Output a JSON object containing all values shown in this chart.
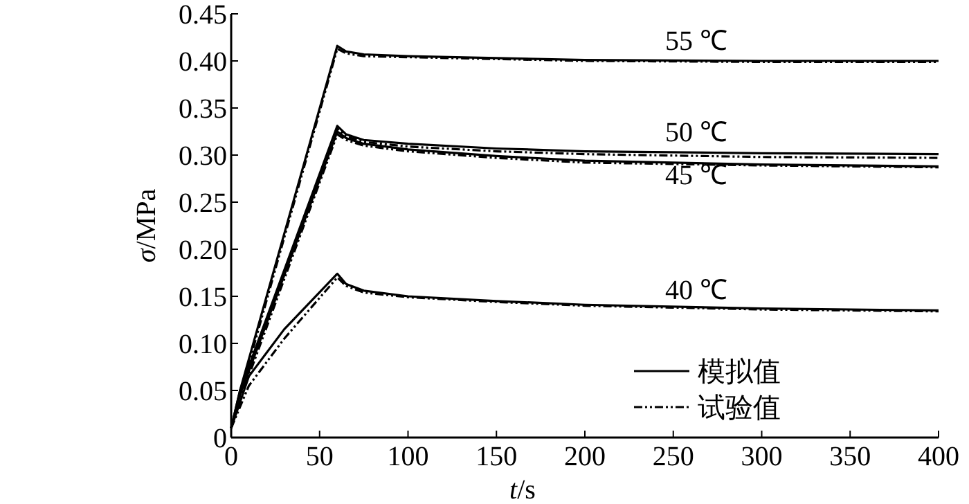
{
  "chart_data": {
    "type": "line",
    "xlabel": "t/s",
    "ylabel": "σ/MPa",
    "xlim": [
      0,
      400
    ],
    "ylim": [
      0,
      0.45
    ],
    "xticks": [
      0,
      50,
      100,
      150,
      200,
      250,
      300,
      350,
      400
    ],
    "yticks": [
      0,
      {
        "value": 0.05,
        "label": "0.05"
      },
      {
        "value": 0.1,
        "label": "0.10"
      },
      {
        "value": 0.15,
        "label": "0.15"
      },
      {
        "value": 0.2,
        "label": "0.20"
      },
      {
        "value": 0.25,
        "label": "0.25"
      },
      {
        "value": 0.3,
        "label": "0.30"
      },
      {
        "value": 0.35,
        "label": "0.35"
      },
      {
        "value": 0.4,
        "label": "0.40"
      },
      {
        "value": 0.45,
        "label": "0.45"
      }
    ],
    "legend": "bottom right",
    "grid": false,
    "marker": "none",
    "series": [
      {
        "name": "模拟值",
        "color": "#000000",
        "line_style": "solid",
        "x": [
          0,
          5,
          60,
          65,
          75,
          100,
          150,
          200,
          300,
          400
        ],
        "values": [
          0.01,
          0.05,
          0.416,
          0.41,
          0.407,
          0.405,
          0.403,
          0.401,
          0.4,
          0.4
        ]
      },
      {
        "name": "试验值",
        "color": "#000000",
        "line_style": "dashed",
        "x": [
          0,
          5,
          60,
          65,
          75,
          100,
          150,
          200,
          300,
          400
        ],
        "values": [
          0.01,
          0.045,
          0.413,
          0.408,
          0.405,
          0.404,
          0.402,
          0.4,
          0.399,
          0.399
        ]
      },
      {
        "color": "#000000",
        "line_style": "solid",
        "x": [
          0,
          5,
          60,
          65,
          75,
          100,
          150,
          200,
          300,
          400
        ],
        "values": [
          0.01,
          0.05,
          0.331,
          0.322,
          0.316,
          0.312,
          0.307,
          0.304,
          0.302,
          0.301
        ]
      },
      {
        "color": "#000000",
        "line_style": "dashed",
        "x": [
          0,
          5,
          60,
          65,
          75,
          100,
          150,
          200,
          300,
          400
        ],
        "values": [
          0.01,
          0.045,
          0.328,
          0.32,
          0.314,
          0.309,
          0.304,
          0.301,
          0.298,
          0.297
        ]
      },
      {
        "color": "#000000",
        "line_style": "solid",
        "x": [
          0,
          5,
          60,
          65,
          75,
          100,
          150,
          200,
          300,
          400
        ],
        "values": [
          0.01,
          0.045,
          0.325,
          0.318,
          0.312,
          0.306,
          0.299,
          0.294,
          0.29,
          0.288
        ]
      },
      {
        "color": "#000000",
        "line_style": "dashed",
        "x": [
          0,
          5,
          60,
          65,
          75,
          100,
          150,
          200,
          300,
          400
        ],
        "values": [
          0.01,
          0.04,
          0.322,
          0.316,
          0.31,
          0.304,
          0.297,
          0.292,
          0.289,
          0.287
        ]
      },
      {
        "color": "#000000",
        "line_style": "solid",
        "x": [
          0,
          10,
          30,
          60,
          65,
          75,
          100,
          150,
          200,
          300,
          400
        ],
        "values": [
          0.01,
          0.065,
          0.115,
          0.174,
          0.163,
          0.156,
          0.15,
          0.145,
          0.141,
          0.137,
          0.135
        ]
      },
      {
        "color": "#000000",
        "line_style": "dashed",
        "x": [
          0,
          10,
          30,
          60,
          65,
          75,
          100,
          150,
          200,
          300,
          400
        ],
        "values": [
          0.01,
          0.055,
          0.105,
          0.17,
          0.161,
          0.154,
          0.149,
          0.144,
          0.14,
          0.136,
          0.134
        ]
      }
    ],
    "annotations": [
      "55 ℃",
      "50 ℃",
      "45 ℃",
      "40 ℃"
    ]
  }
}
